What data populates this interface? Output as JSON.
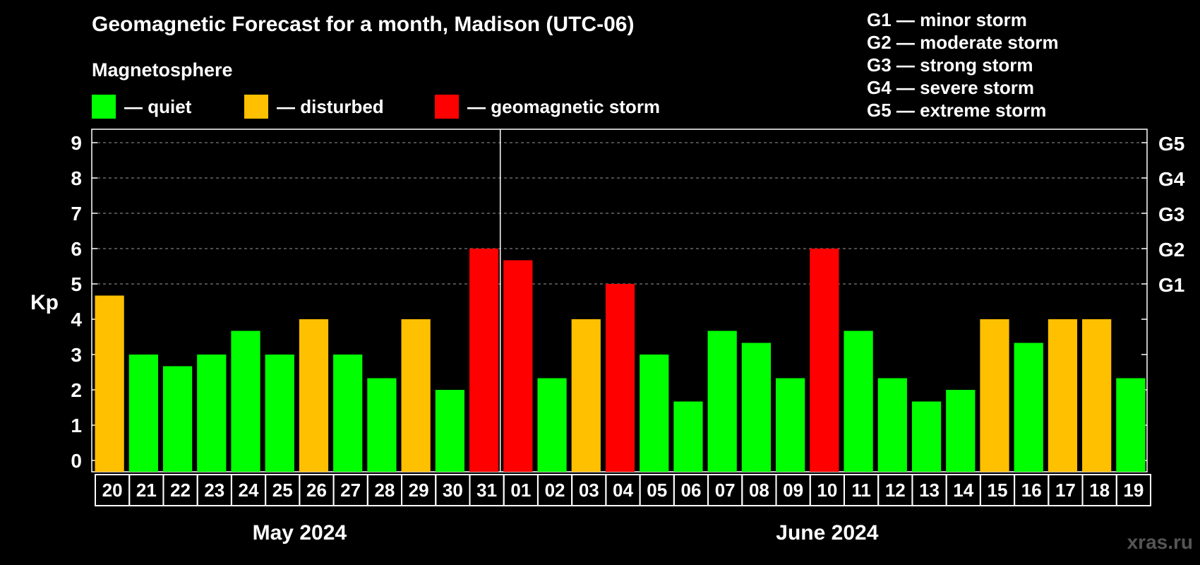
{
  "title": "Geomagnetic Forecast for a month, Madison (UTC-06)",
  "subtitle": "Magnetosphere",
  "legend": [
    {
      "label": "— quiet",
      "color": "#00ff00"
    },
    {
      "label": "— disturbed",
      "color": "#ffc000"
    },
    {
      "label": "— geomagnetic storm",
      "color": "#ff0000"
    }
  ],
  "storm_scale": [
    "G1 — minor storm",
    "G2 — moderate storm",
    "G3 — strong storm",
    "G4 — severe storm",
    "G5 — extreme storm"
  ],
  "watermark": "xras.ru",
  "colors": {
    "quiet": "#00ff00",
    "disturbed": "#ffc000",
    "storm": "#ff0000"
  },
  "chart_data": {
    "type": "bar",
    "ylabel": "Kp",
    "ylim": [
      0,
      9
    ],
    "yticks": [
      0,
      1,
      2,
      3,
      4,
      5,
      6,
      7,
      8,
      9
    ],
    "right_axis_labels": [
      {
        "kp": 5,
        "label": "G1"
      },
      {
        "kp": 6,
        "label": "G2"
      },
      {
        "kp": 7,
        "label": "G3"
      },
      {
        "kp": 8,
        "label": "G4"
      },
      {
        "kp": 9,
        "label": "G5"
      }
    ],
    "grid": "dashed, Kp 5 to 9",
    "month_divider_after": "31",
    "months": [
      {
        "label": "May 2024",
        "days": 12
      },
      {
        "label": "June 2024",
        "days": 19
      }
    ],
    "categories": [
      "20",
      "21",
      "22",
      "23",
      "24",
      "25",
      "26",
      "27",
      "28",
      "29",
      "30",
      "31",
      "01",
      "02",
      "03",
      "04",
      "05",
      "06",
      "07",
      "08",
      "09",
      "10",
      "11",
      "12",
      "13",
      "14",
      "15",
      "16",
      "17",
      "18",
      "19"
    ],
    "values": [
      4.67,
      3,
      2.67,
      3,
      3.67,
      3,
      4,
      3,
      2.33,
      4,
      2,
      6,
      5.67,
      2.33,
      4,
      5,
      3,
      1.67,
      3.67,
      3.33,
      2.33,
      6,
      3.67,
      2.33,
      1.67,
      2,
      4,
      3.33,
      4,
      4,
      2.33
    ],
    "levels": [
      "disturbed",
      "quiet",
      "quiet",
      "quiet",
      "quiet",
      "quiet",
      "disturbed",
      "quiet",
      "quiet",
      "disturbed",
      "quiet",
      "storm",
      "storm",
      "quiet",
      "disturbed",
      "storm",
      "quiet",
      "quiet",
      "quiet",
      "quiet",
      "quiet",
      "storm",
      "quiet",
      "quiet",
      "quiet",
      "quiet",
      "disturbed",
      "quiet",
      "disturbed",
      "disturbed",
      "quiet"
    ]
  }
}
